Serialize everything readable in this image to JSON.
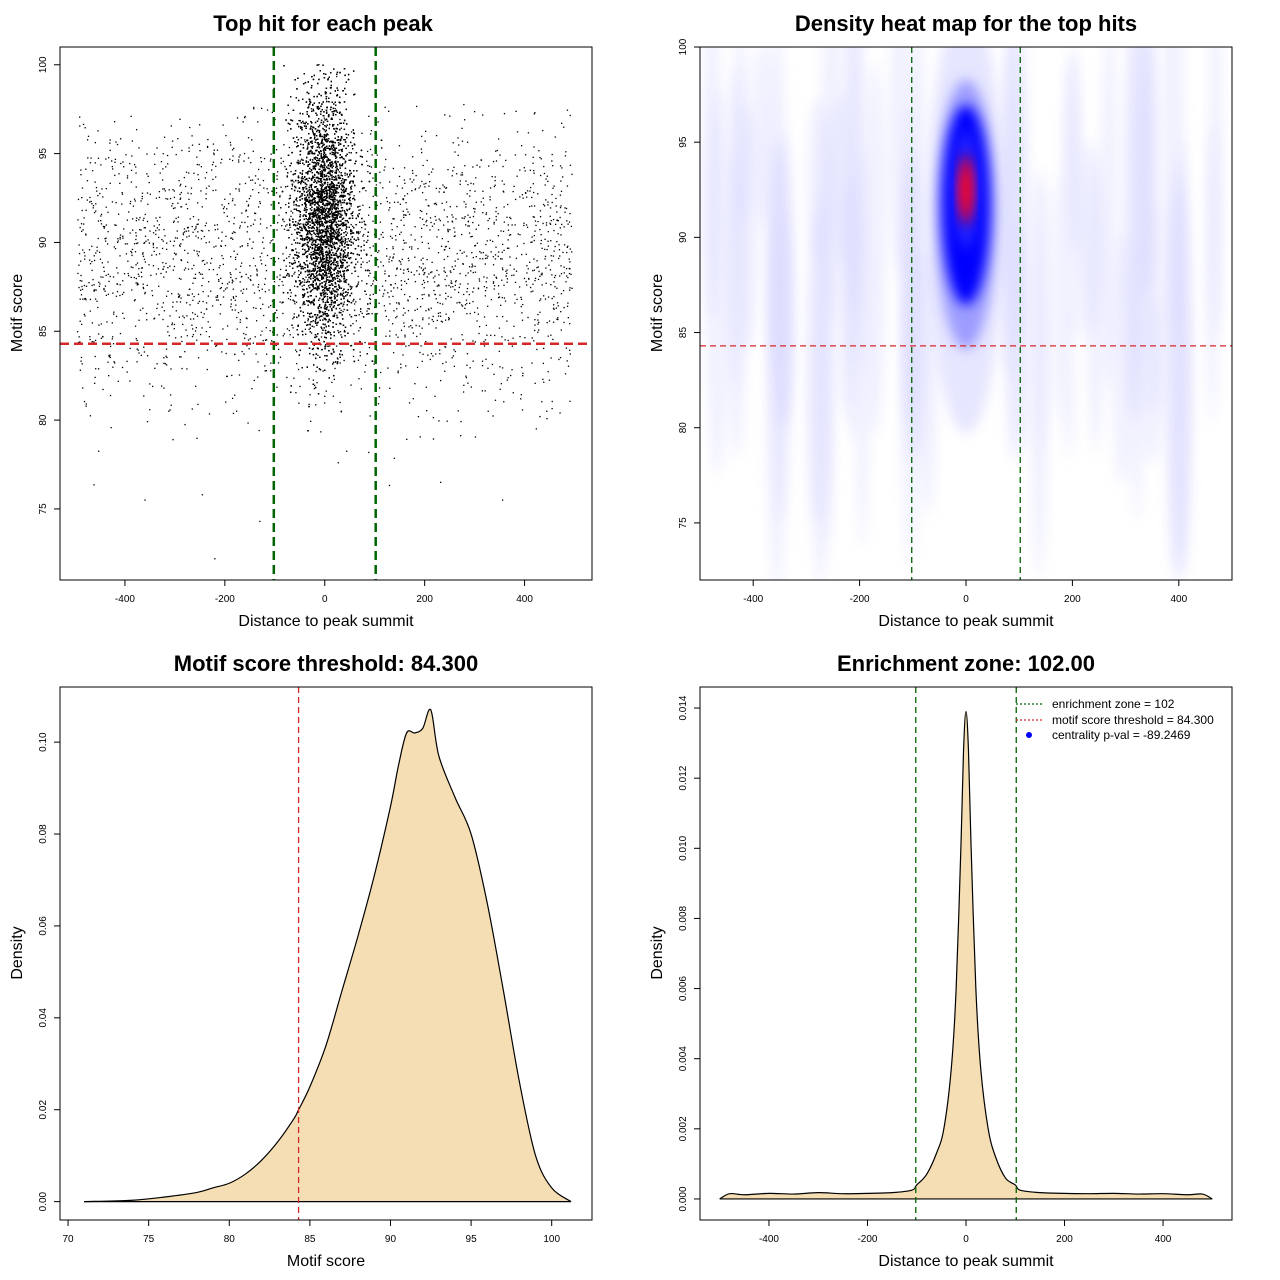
{
  "chart_data": [
    {
      "id": "p1",
      "type": "scatter",
      "title": "Top hit for each peak",
      "xlabel": "Distance to peak summit",
      "ylabel": "Motif score",
      "xlim": [
        -530,
        535
      ],
      "ylim": [
        71,
        101
      ],
      "xticks": [
        -400,
        -200,
        0,
        200,
        400
      ],
      "yticks": [
        75,
        80,
        85,
        90,
        95,
        100
      ],
      "points_description": "about 13000 top hits; dense cloud within +/-100 of summit centered near score 91, sparse uniform background across -500..500 with scores 72-100",
      "vlines": [
        {
          "x": -102,
          "color": "#006400"
        },
        {
          "x": 102,
          "color": "#006400"
        }
      ],
      "hlines": [
        {
          "y": 84.3,
          "color": "#d62728"
        }
      ]
    },
    {
      "id": "p2",
      "type": "heatmap",
      "title": "Density heat map for the top hits",
      "xlabel": "Distance to peak summit",
      "ylabel": "Motif score",
      "xlim": [
        -500,
        500
      ],
      "ylim": [
        72,
        100
      ],
      "xticks": [
        -400,
        -200,
        0,
        200,
        400
      ],
      "yticks": [
        75,
        80,
        85,
        90,
        95,
        100
      ],
      "peak": {
        "x": 0,
        "y": 92.5
      },
      "colors": [
        "#ffffff",
        "#0000ff",
        "#ff0000"
      ],
      "vlines": [
        {
          "x": -102,
          "color": "#006400"
        },
        {
          "x": 102,
          "color": "#006400"
        }
      ],
      "hlines": [
        {
          "y": 84.3,
          "color": "#d62728"
        }
      ]
    },
    {
      "id": "p3",
      "type": "area",
      "title": "Motif score threshold: 84.300",
      "xlabel": "Motif score",
      "ylabel": "Density",
      "xlim": [
        69.5,
        102.5
      ],
      "ylim": [
        -0.004,
        0.112
      ],
      "xticks": [
        70,
        75,
        80,
        85,
        90,
        95,
        100
      ],
      "yticks": [
        0.0,
        0.02,
        0.04,
        0.06,
        0.08,
        0.1
      ],
      "ytick_labels": [
        "0.00",
        "0.02",
        "0.04",
        "0.06",
        "0.08",
        "0.10"
      ],
      "fill": "#f5deb3",
      "x": [
        71,
        74,
        76,
        78,
        79,
        80,
        81,
        82,
        83,
        84,
        84.3,
        85,
        86,
        87,
        88,
        89,
        90,
        90.5,
        91,
        91.5,
        92,
        92.5,
        93,
        94,
        95,
        96,
        97,
        98,
        99,
        100,
        101.2
      ],
      "y": [
        0,
        0.0003,
        0.001,
        0.002,
        0.003,
        0.004,
        0.006,
        0.009,
        0.013,
        0.018,
        0.02,
        0.025,
        0.034,
        0.046,
        0.058,
        0.071,
        0.086,
        0.095,
        0.102,
        0.102,
        0.103,
        0.107,
        0.097,
        0.088,
        0.08,
        0.065,
        0.046,
        0.026,
        0.01,
        0.003,
        0
      ],
      "vlines": [
        {
          "x": 84.3,
          "color": "#d62728"
        }
      ]
    },
    {
      "id": "p4",
      "type": "area",
      "title": "Enrichment zone: 102.00",
      "xlabel": "Distance to peak summit",
      "ylabel": "Density",
      "xlim": [
        -540,
        540
      ],
      "ylim": [
        -0.0006,
        0.0146
      ],
      "xticks": [
        -400,
        -200,
        0,
        200,
        400
      ],
      "yticks": [
        0.0,
        0.002,
        0.004,
        0.006,
        0.008,
        0.01,
        0.012,
        0.014
      ],
      "ytick_labels": [
        "0.000",
        "0.002",
        "0.004",
        "0.006",
        "0.008",
        "0.010",
        "0.012",
        "0.014"
      ],
      "fill": "#f5deb3",
      "x": [
        -500,
        -480,
        -450,
        -400,
        -350,
        -300,
        -250,
        -200,
        -150,
        -110,
        -100,
        -80,
        -60,
        -45,
        -30,
        -20,
        -10,
        -5,
        0,
        5,
        10,
        20,
        30,
        45,
        60,
        80,
        100,
        110,
        150,
        200,
        250,
        300,
        350,
        400,
        450,
        480,
        500
      ],
      "y": [
        0,
        0.00015,
        0.00012,
        0.00016,
        0.00014,
        0.00018,
        0.00015,
        0.00016,
        0.00018,
        0.00025,
        0.0004,
        0.0007,
        0.0013,
        0.002,
        0.0037,
        0.006,
        0.0102,
        0.0128,
        0.0139,
        0.0128,
        0.0102,
        0.006,
        0.0037,
        0.002,
        0.0012,
        0.0006,
        0.0004,
        0.00025,
        0.00018,
        0.00016,
        0.00015,
        0.00016,
        0.00014,
        0.00015,
        0.00012,
        0.00014,
        0
      ],
      "vlines": [
        {
          "x": -102,
          "color": "#006400"
        },
        {
          "x": 102,
          "color": "#006400"
        }
      ],
      "legend": {
        "placement": "top-right",
        "entries": [
          {
            "label": "enrichment zone = 102",
            "color": "#006400",
            "kind": "dotted-line"
          },
          {
            "label": "motif score threshold = 84.300",
            "color": "#d62728",
            "kind": "dotted-line"
          },
          {
            "label": "centrality p-val = -89.2469",
            "color": "#0000ff",
            "kind": "point"
          }
        ]
      }
    }
  ]
}
